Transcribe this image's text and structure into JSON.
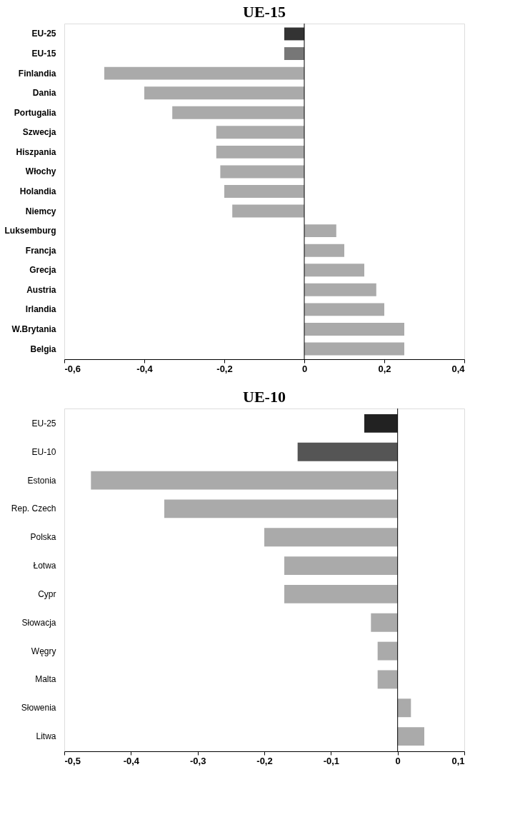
{
  "chart_data": [
    {
      "type": "bar",
      "orientation": "horizontal",
      "title": "UE-15",
      "categories": [
        "EU-25",
        "EU-15",
        "Finlandia",
        "Dania",
        "Portugalia",
        "Szwecja",
        "Hiszpania",
        "Włochy",
        "Holandia",
        "Niemcy",
        "Luksemburg",
        "Francja",
        "Grecja",
        "Austria",
        "Irlandia",
        "W.Brytania",
        "Belgia"
      ],
      "values": [
        -0.05,
        -0.05,
        -0.5,
        -0.4,
        -0.33,
        -0.22,
        -0.22,
        -0.21,
        -0.2,
        -0.18,
        0.08,
        0.1,
        0.15,
        0.18,
        0.2,
        0.25,
        0.25
      ],
      "colors": [
        "#333333",
        "#777777",
        "#aaaaaa",
        "#aaaaaa",
        "#aaaaaa",
        "#aaaaaa",
        "#aaaaaa",
        "#aaaaaa",
        "#aaaaaa",
        "#aaaaaa",
        "#aaaaaa",
        "#aaaaaa",
        "#aaaaaa",
        "#aaaaaa",
        "#aaaaaa",
        "#aaaaaa",
        "#aaaaaa"
      ],
      "xlim": [
        -0.6,
        0.4
      ],
      "xticks": [
        {
          "value": -0.6,
          "label": "-0,6"
        },
        {
          "value": -0.4,
          "label": "-0,4"
        },
        {
          "value": -0.2,
          "label": "-0,2"
        },
        {
          "value": 0,
          "label": "0"
        },
        {
          "value": 0.2,
          "label": "0,2"
        },
        {
          "value": 0.4,
          "label": "0,4"
        }
      ],
      "ref_lines": [
        {
          "axis": "x",
          "value": 0,
          "color": "#000000"
        }
      ],
      "grid": false
    },
    {
      "type": "bar",
      "orientation": "horizontal",
      "title": "UE-10",
      "categories": [
        "EU-25",
        "EU-10",
        "Estonia",
        "Rep. Czech",
        "Polska",
        "Łotwa",
        "Cypr",
        "Słowacja",
        "Węgry",
        "Malta",
        "Słowenia",
        "Litwa"
      ],
      "values": [
        -0.05,
        -0.15,
        -0.46,
        -0.35,
        -0.2,
        -0.17,
        -0.17,
        -0.04,
        -0.03,
        -0.03,
        0.02,
        0.04
      ],
      "colors": [
        "#222222",
        "#555555",
        "#aaaaaa",
        "#aaaaaa",
        "#aaaaaa",
        "#aaaaaa",
        "#aaaaaa",
        "#aaaaaa",
        "#aaaaaa",
        "#aaaaaa",
        "#aaaaaa",
        "#aaaaaa"
      ],
      "xlim": [
        -0.5,
        0.1
      ],
      "xticks": [
        {
          "value": -0.5,
          "label": "-0,5"
        },
        {
          "value": -0.4,
          "label": "-0,4"
        },
        {
          "value": -0.3,
          "label": "-0,3"
        },
        {
          "value": -0.2,
          "label": "-0,2"
        },
        {
          "value": -0.1,
          "label": "-0,1"
        },
        {
          "value": 0,
          "label": "0"
        },
        {
          "value": 0.1,
          "label": "0,1"
        }
      ],
      "ref_lines": [
        {
          "axis": "x",
          "value": 0,
          "color": "#000000"
        }
      ],
      "grid": false
    }
  ]
}
